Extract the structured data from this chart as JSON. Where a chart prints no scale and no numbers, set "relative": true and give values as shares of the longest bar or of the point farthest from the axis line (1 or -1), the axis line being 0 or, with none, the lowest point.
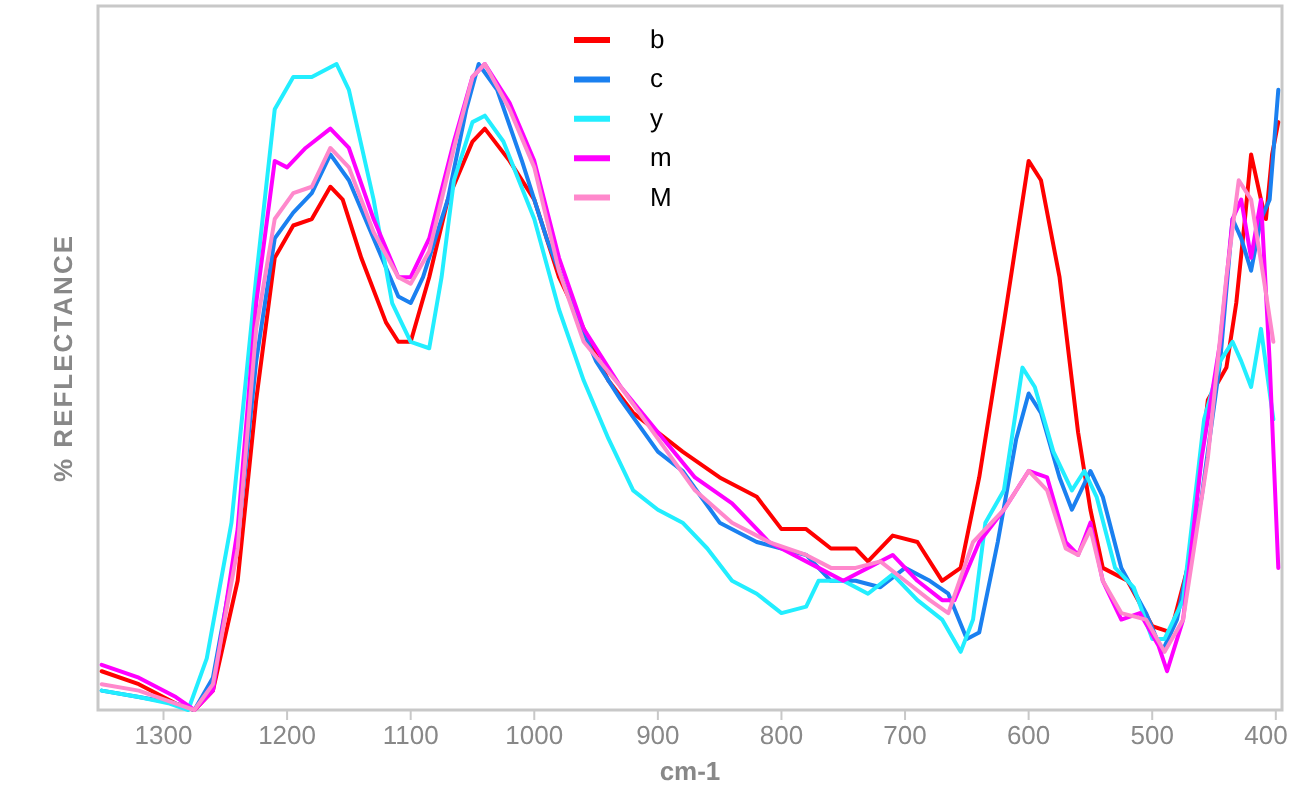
{
  "chart_data": {
    "type": "line",
    "relative": true,
    "xlabel": "cm-1",
    "ylabel": "% REFLECTANCE",
    "xlim": [
      1353,
      395
    ],
    "xticks": [
      1300,
      1200,
      1100,
      1000,
      900,
      800,
      700,
      600,
      500,
      400
    ],
    "grid": false,
    "legend": "top",
    "marker": "none",
    "line_style": "solid",
    "series": [
      {
        "name": "b",
        "color": "#ff0000",
        "x": [
          1350,
          1320,
          1290,
          1275,
          1260,
          1240,
          1225,
          1210,
          1195,
          1180,
          1165,
          1155,
          1140,
          1120,
          1110,
          1100,
          1085,
          1070,
          1050,
          1040,
          1020,
          1000,
          980,
          960,
          940,
          920,
          900,
          880,
          850,
          820,
          800,
          780,
          760,
          740,
          730,
          710,
          690,
          670,
          655,
          640,
          620,
          600,
          590,
          575,
          560,
          550,
          540,
          520,
          500,
          485,
          470,
          455,
          440,
          432,
          425,
          420,
          412,
          408,
          403,
          398
        ],
        "values": [
          0.06,
          0.04,
          0.01,
          0,
          0.03,
          0.2,
          0.48,
          0.7,
          0.75,
          0.76,
          0.81,
          0.79,
          0.7,
          0.6,
          0.57,
          0.57,
          0.67,
          0.79,
          0.88,
          0.9,
          0.85,
          0.79,
          0.67,
          0.59,
          0.51,
          0.46,
          0.43,
          0.4,
          0.36,
          0.33,
          0.28,
          0.28,
          0.25,
          0.25,
          0.23,
          0.27,
          0.26,
          0.2,
          0.22,
          0.36,
          0.6,
          0.85,
          0.82,
          0.67,
          0.43,
          0.31,
          0.22,
          0.2,
          0.13,
          0.12,
          0.23,
          0.48,
          0.53,
          0.63,
          0.76,
          0.86,
          0.79,
          0.76,
          0.86,
          0.91
        ]
      },
      {
        "name": "c",
        "color": "#1a80f0",
        "x": [
          1350,
          1320,
          1290,
          1275,
          1260,
          1240,
          1225,
          1210,
          1195,
          1180,
          1165,
          1150,
          1130,
          1110,
          1100,
          1090,
          1070,
          1055,
          1045,
          1030,
          1010,
          990,
          970,
          950,
          930,
          900,
          880,
          850,
          820,
          800,
          780,
          760,
          740,
          720,
          700,
          680,
          665,
          650,
          640,
          625,
          610,
          600,
          590,
          575,
          565,
          550,
          540,
          525,
          505,
          492,
          480,
          460,
          445,
          435,
          428,
          420,
          412,
          405,
          398
        ],
        "values": [
          0.03,
          0.02,
          0.01,
          0,
          0.05,
          0.26,
          0.54,
          0.73,
          0.77,
          0.8,
          0.86,
          0.82,
          0.73,
          0.64,
          0.63,
          0.67,
          0.79,
          0.93,
          1,
          0.96,
          0.85,
          0.73,
          0.63,
          0.54,
          0.48,
          0.4,
          0.37,
          0.29,
          0.26,
          0.25,
          0.24,
          0.2,
          0.2,
          0.19,
          0.22,
          0.2,
          0.18,
          0.11,
          0.12,
          0.26,
          0.42,
          0.49,
          0.46,
          0.36,
          0.31,
          0.37,
          0.33,
          0.22,
          0.15,
          0.09,
          0.14,
          0.33,
          0.54,
          0.76,
          0.73,
          0.68,
          0.76,
          0.79,
          0.96
        ]
      },
      {
        "name": "y",
        "color": "#22eeff",
        "x": [
          1350,
          1320,
          1295,
          1280,
          1265,
          1245,
          1225,
          1210,
          1195,
          1180,
          1160,
          1150,
          1130,
          1115,
          1100,
          1085,
          1075,
          1065,
          1050,
          1040,
          1025,
          1000,
          980,
          960,
          940,
          920,
          900,
          880,
          860,
          840,
          820,
          800,
          780,
          770,
          750,
          730,
          710,
          690,
          670,
          655,
          645,
          635,
          620,
          605,
          595,
          580,
          565,
          555,
          545,
          530,
          515,
          500,
          490,
          475,
          458,
          445,
          435,
          428,
          420,
          412,
          402
        ],
        "values": [
          0.03,
          0.02,
          0.01,
          0,
          0.08,
          0.29,
          0.67,
          0.93,
          0.98,
          0.98,
          1,
          0.96,
          0.79,
          0.63,
          0.57,
          0.56,
          0.67,
          0.82,
          0.91,
          0.92,
          0.88,
          0.76,
          0.62,
          0.51,
          0.42,
          0.34,
          0.31,
          0.29,
          0.25,
          0.2,
          0.18,
          0.15,
          0.16,
          0.2,
          0.2,
          0.18,
          0.21,
          0.17,
          0.14,
          0.09,
          0.14,
          0.29,
          0.34,
          0.53,
          0.5,
          0.4,
          0.34,
          0.37,
          0.33,
          0.22,
          0.19,
          0.11,
          0.11,
          0.17,
          0.45,
          0.54,
          0.57,
          0.54,
          0.5,
          0.59,
          0.45
        ]
      },
      {
        "name": "m",
        "color": "#ff00ff",
        "x": [
          1350,
          1320,
          1290,
          1275,
          1260,
          1240,
          1225,
          1210,
          1200,
          1185,
          1165,
          1150,
          1130,
          1110,
          1100,
          1085,
          1065,
          1050,
          1040,
          1020,
          1000,
          980,
          960,
          930,
          900,
          870,
          840,
          810,
          790,
          770,
          750,
          730,
          710,
          690,
          670,
          660,
          640,
          620,
          600,
          585,
          570,
          560,
          550,
          540,
          525,
          510,
          495,
          488,
          475,
          460,
          445,
          435,
          428,
          420,
          412,
          405,
          398
        ],
        "values": [
          0.07,
          0.05,
          0.02,
          0,
          0.03,
          0.28,
          0.63,
          0.85,
          0.84,
          0.87,
          0.9,
          0.87,
          0.76,
          0.67,
          0.67,
          0.73,
          0.88,
          0.98,
          1,
          0.94,
          0.85,
          0.7,
          0.59,
          0.5,
          0.43,
          0.36,
          0.32,
          0.26,
          0.24,
          0.22,
          0.2,
          0.22,
          0.24,
          0.2,
          0.17,
          0.17,
          0.26,
          0.31,
          0.37,
          0.36,
          0.26,
          0.24,
          0.29,
          0.2,
          0.14,
          0.15,
          0.1,
          0.06,
          0.14,
          0.39,
          0.57,
          0.76,
          0.79,
          0.7,
          0.79,
          0.54,
          0.22
        ]
      },
      {
        "name": "M",
        "color": "#ff88cc",
        "x": [
          1350,
          1320,
          1290,
          1275,
          1260,
          1240,
          1225,
          1210,
          1195,
          1180,
          1165,
          1150,
          1130,
          1110,
          1100,
          1085,
          1065,
          1050,
          1040,
          1020,
          1000,
          980,
          960,
          930,
          900,
          870,
          840,
          810,
          780,
          760,
          740,
          720,
          700,
          680,
          665,
          645,
          620,
          600,
          585,
          570,
          560,
          550,
          540,
          525,
          505,
          490,
          475,
          455,
          440,
          430,
          420,
          410,
          402
        ],
        "values": [
          0.04,
          0.03,
          0.01,
          0,
          0.04,
          0.25,
          0.59,
          0.76,
          0.8,
          0.81,
          0.87,
          0.84,
          0.74,
          0.67,
          0.66,
          0.71,
          0.87,
          0.98,
          1,
          0.93,
          0.84,
          0.68,
          0.57,
          0.5,
          0.42,
          0.34,
          0.29,
          0.26,
          0.24,
          0.22,
          0.22,
          0.23,
          0.2,
          0.17,
          0.15,
          0.26,
          0.31,
          0.37,
          0.34,
          0.25,
          0.24,
          0.28,
          0.2,
          0.15,
          0.14,
          0.09,
          0.14,
          0.39,
          0.67,
          0.82,
          0.79,
          0.67,
          0.57
        ]
      }
    ]
  }
}
